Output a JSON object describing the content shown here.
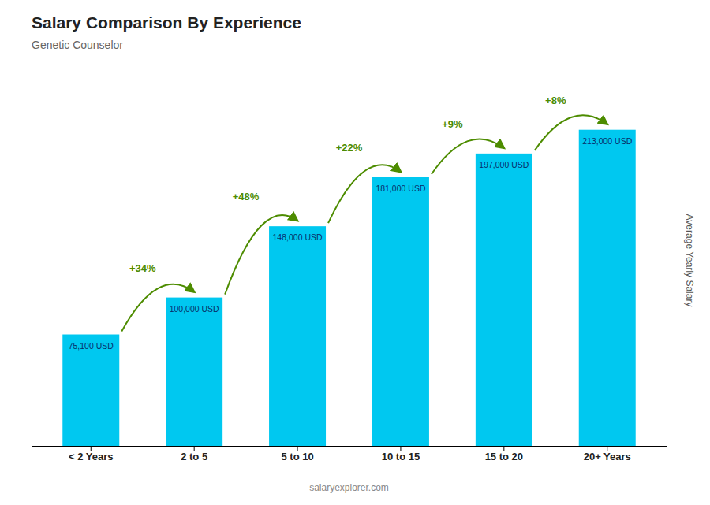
{
  "chart_data": {
    "type": "bar",
    "title": "Salary Comparison By Experience",
    "subtitle": "Genetic Counselor",
    "categories": [
      "< 2 Years",
      "2 to 5",
      "5 to 10",
      "10 to 15",
      "15 to 20",
      "20+ Years"
    ],
    "values": [
      75100,
      100000,
      148000,
      181000,
      197000,
      213000
    ],
    "value_labels": [
      "75,100 USD",
      "100,000 USD",
      "148,000 USD",
      "181,000 USD",
      "197,000 USD",
      "213,000 USD"
    ],
    "data_labels": true,
    "annotations": [
      "+34%",
      "+48%",
      "+22%",
      "+9%",
      "+8%"
    ],
    "y_label": "Average Yearly Salary",
    "watermark": "salaryexplorer.com",
    "color": "#00c8f0",
    "ylim": [
      0,
      250000
    ],
    "tick_labels": "x",
    "grid": false
  }
}
